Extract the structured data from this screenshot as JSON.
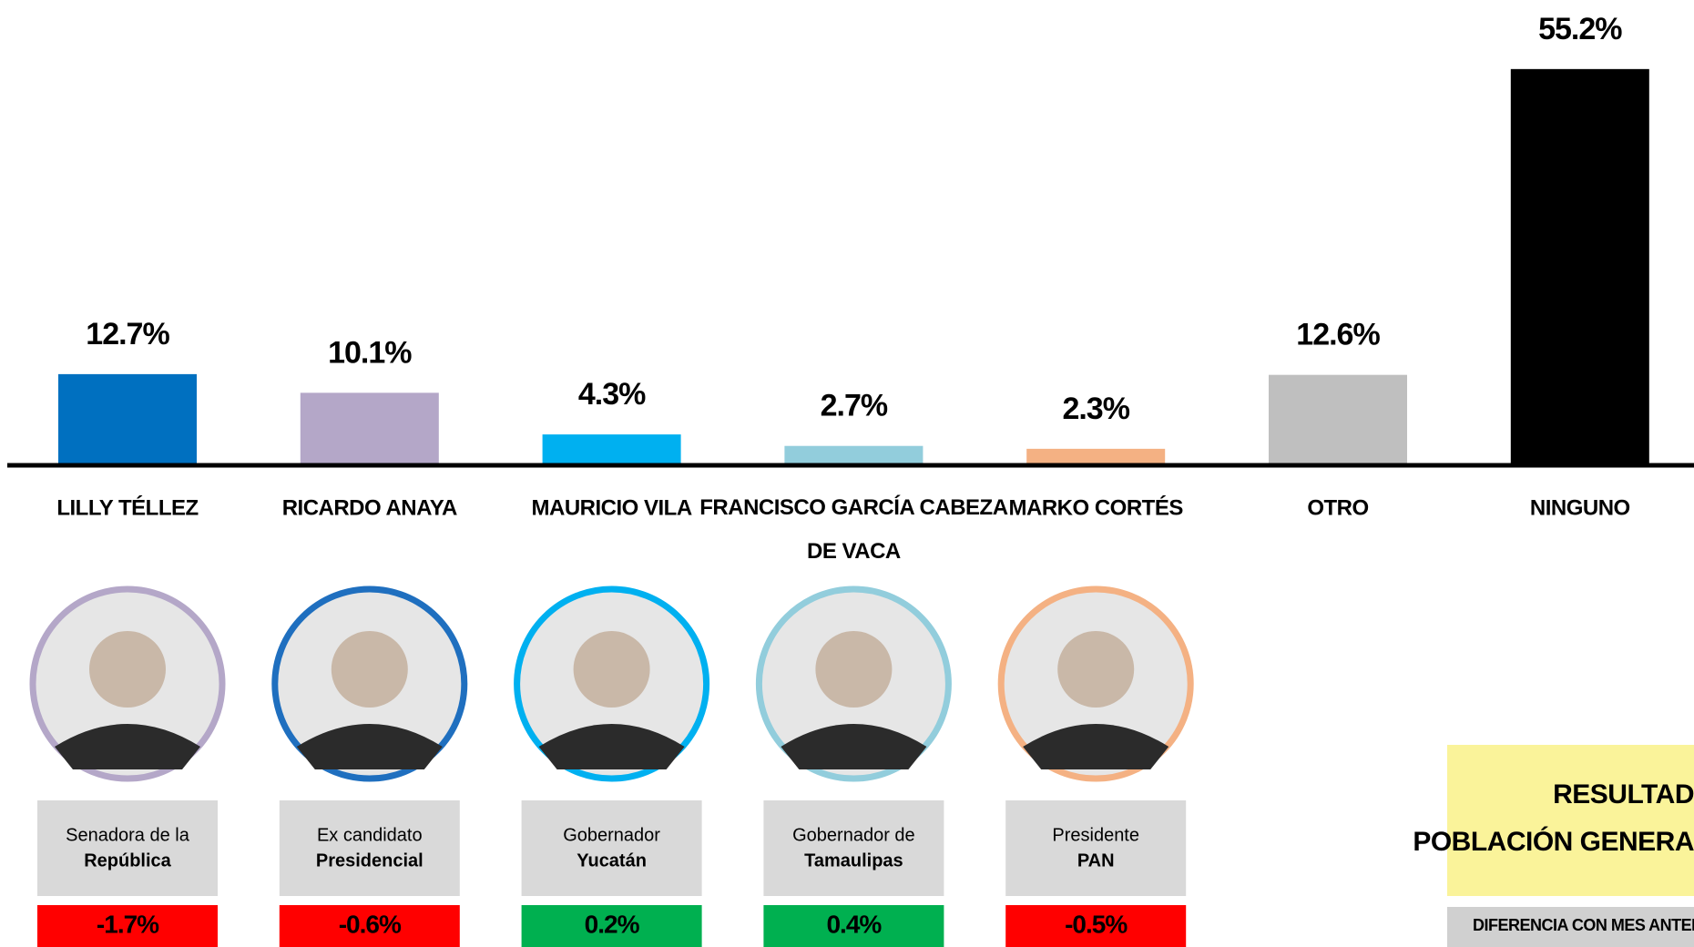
{
  "chart_data": {
    "type": "bar",
    "categories": [
      "LILLY TÉLLEZ",
      "RICARDO ANAYA",
      "MAURICIO VILA",
      "FRANCISCO GARCÍA CABEZA DE VACA",
      "MARKO CORTÉS",
      "OTRO",
      "NINGUNO"
    ],
    "values": [
      12.7,
      10.1,
      4.3,
      2.7,
      2.3,
      12.6,
      55.2
    ],
    "value_labels": [
      "12.7%",
      "10.1%",
      "4.3%",
      "2.7%",
      "2.3%",
      "12.6%",
      "55.2%"
    ],
    "colors": [
      "#0070c0",
      "#b4a7c8",
      "#00b0f0",
      "#92cddc",
      "#f4b183",
      "#bfbfbf",
      "#000000"
    ],
    "ylim": [
      0,
      60
    ],
    "candidates": [
      {
        "role": "Senadora de la",
        "office": "República",
        "ring": "#b4a7c8",
        "diff": -1.7,
        "diff_label": "-1.7%",
        "diff_color": "#ff0000"
      },
      {
        "role": "Ex candidato",
        "office": "Presidencial",
        "ring": "#1f6fbf",
        "diff": -0.6,
        "diff_label": "-0.6%",
        "diff_color": "#ff0000"
      },
      {
        "role": "Gobernador",
        "office": "Yucatán",
        "ring": "#00b0f0",
        "diff": 0.2,
        "diff_label": "0.2%",
        "diff_color": "#00b050"
      },
      {
        "role": "Gobernador de",
        "office": "Tamaulipas",
        "ring": "#92cddc",
        "diff": 0.4,
        "diff_label": "0.4%",
        "diff_color": "#00b050"
      },
      {
        "role": "Presidente",
        "office": "PAN",
        "ring": "#f4b183",
        "diff": -0.5,
        "diff_label": "-0.5%",
        "diff_color": "#ff0000"
      }
    ],
    "legend_box": {
      "title_lines": [
        "RESULTAD",
        "POBLACIÓN GENERA"
      ],
      "note": "DIFERENCIA CON MES ANTERIO"
    }
  }
}
